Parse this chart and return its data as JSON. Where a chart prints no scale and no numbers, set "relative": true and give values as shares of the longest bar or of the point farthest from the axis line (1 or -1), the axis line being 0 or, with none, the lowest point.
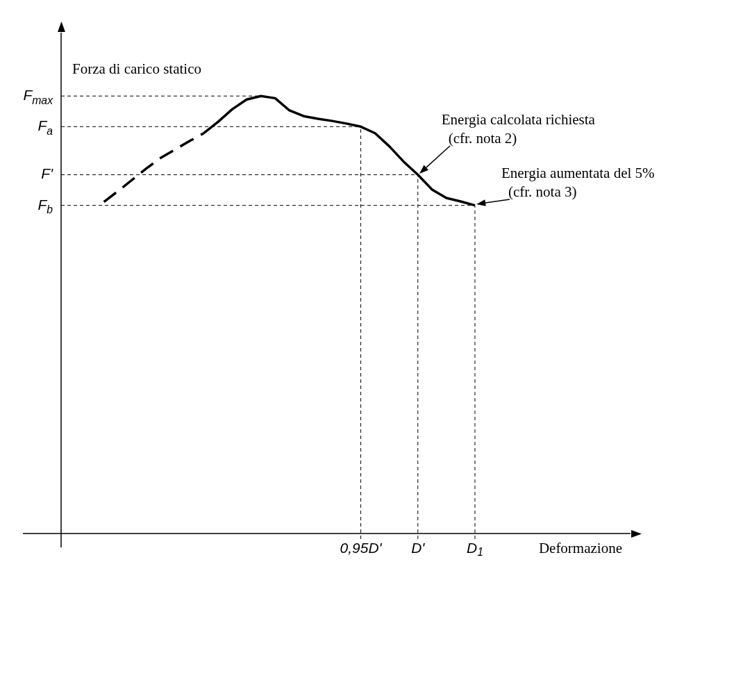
{
  "chart_data": {
    "type": "line",
    "relative": true,
    "xlabel": "Deformazione",
    "ylabel": "Forza di carico statico",
    "categories": [
      null,
      null,
      null,
      null,
      null,
      null,
      null,
      null,
      null,
      null,
      null,
      null,
      null,
      null,
      null,
      null,
      null,
      null,
      null,
      null,
      null,
      "0,95D'",
      null,
      null,
      null,
      "D'",
      null,
      null,
      null,
      "D$_{1}$",
      null,
      null,
      null,
      null,
      null,
      null,
      null,
      null,
      null,
      null,
      null
    ],
    "grid": "x",
    "marker": "none",
    "series": [
      {
        "color": "#000000",
        "line_style": "dashed",
        "values": [
          null,
          null,
          null,
          0.758,
          0.783,
          0.809,
          0.835,
          0.859,
          0.878,
          0.897,
          0.915,
          null,
          null,
          null,
          null,
          null,
          null,
          null,
          null,
          null,
          null,
          null,
          null,
          null,
          null,
          null,
          null,
          null,
          null,
          null,
          null,
          null,
          null,
          null,
          null,
          null,
          null,
          null,
          null,
          null,
          null
        ]
      },
      {
        "color": "#000000",
        "line_style": "solid",
        "values": [
          null,
          null,
          null,
          null,
          null,
          null,
          null,
          null,
          null,
          null,
          0.915,
          0.941,
          0.97,
          0.992,
          1,
          0.995,
          0.967,
          0.954,
          0.948,
          0.943,
          0.937,
          0.93,
          0.915,
          0.885,
          0.85,
          0.82,
          0.786,
          0.767,
          0.759,
          0.75,
          null,
          null,
          null,
          null,
          null,
          null,
          null,
          null,
          null,
          null,
          null
        ]
      }
    ],
    "ref_lines": [
      {
        "axis": "y",
        "value": 1,
        "label": "F$_{max}$",
        "line_style": "dashed"
      },
      {
        "axis": "y",
        "value": 0.93,
        "label": "F$_{a}$",
        "line_style": "dashed"
      },
      {
        "axis": "y",
        "value": 0.82,
        "label": "F'",
        "line_style": "dashed"
      },
      {
        "axis": "y",
        "value": 0.75,
        "label": "F$_{b}$",
        "line_style": "dashed"
      }
    ],
    "annotations": [
      {
        "text": "Energia calcolata richiesta\n(cfr. nota 2)",
        "x": "D'",
        "y": 0.82
      },
      {
        "text": "Energia aumentata del 5%\n(cfr. nota 3)",
        "x": "D$_{1}$",
        "y": 0.75
      }
    ]
  }
}
